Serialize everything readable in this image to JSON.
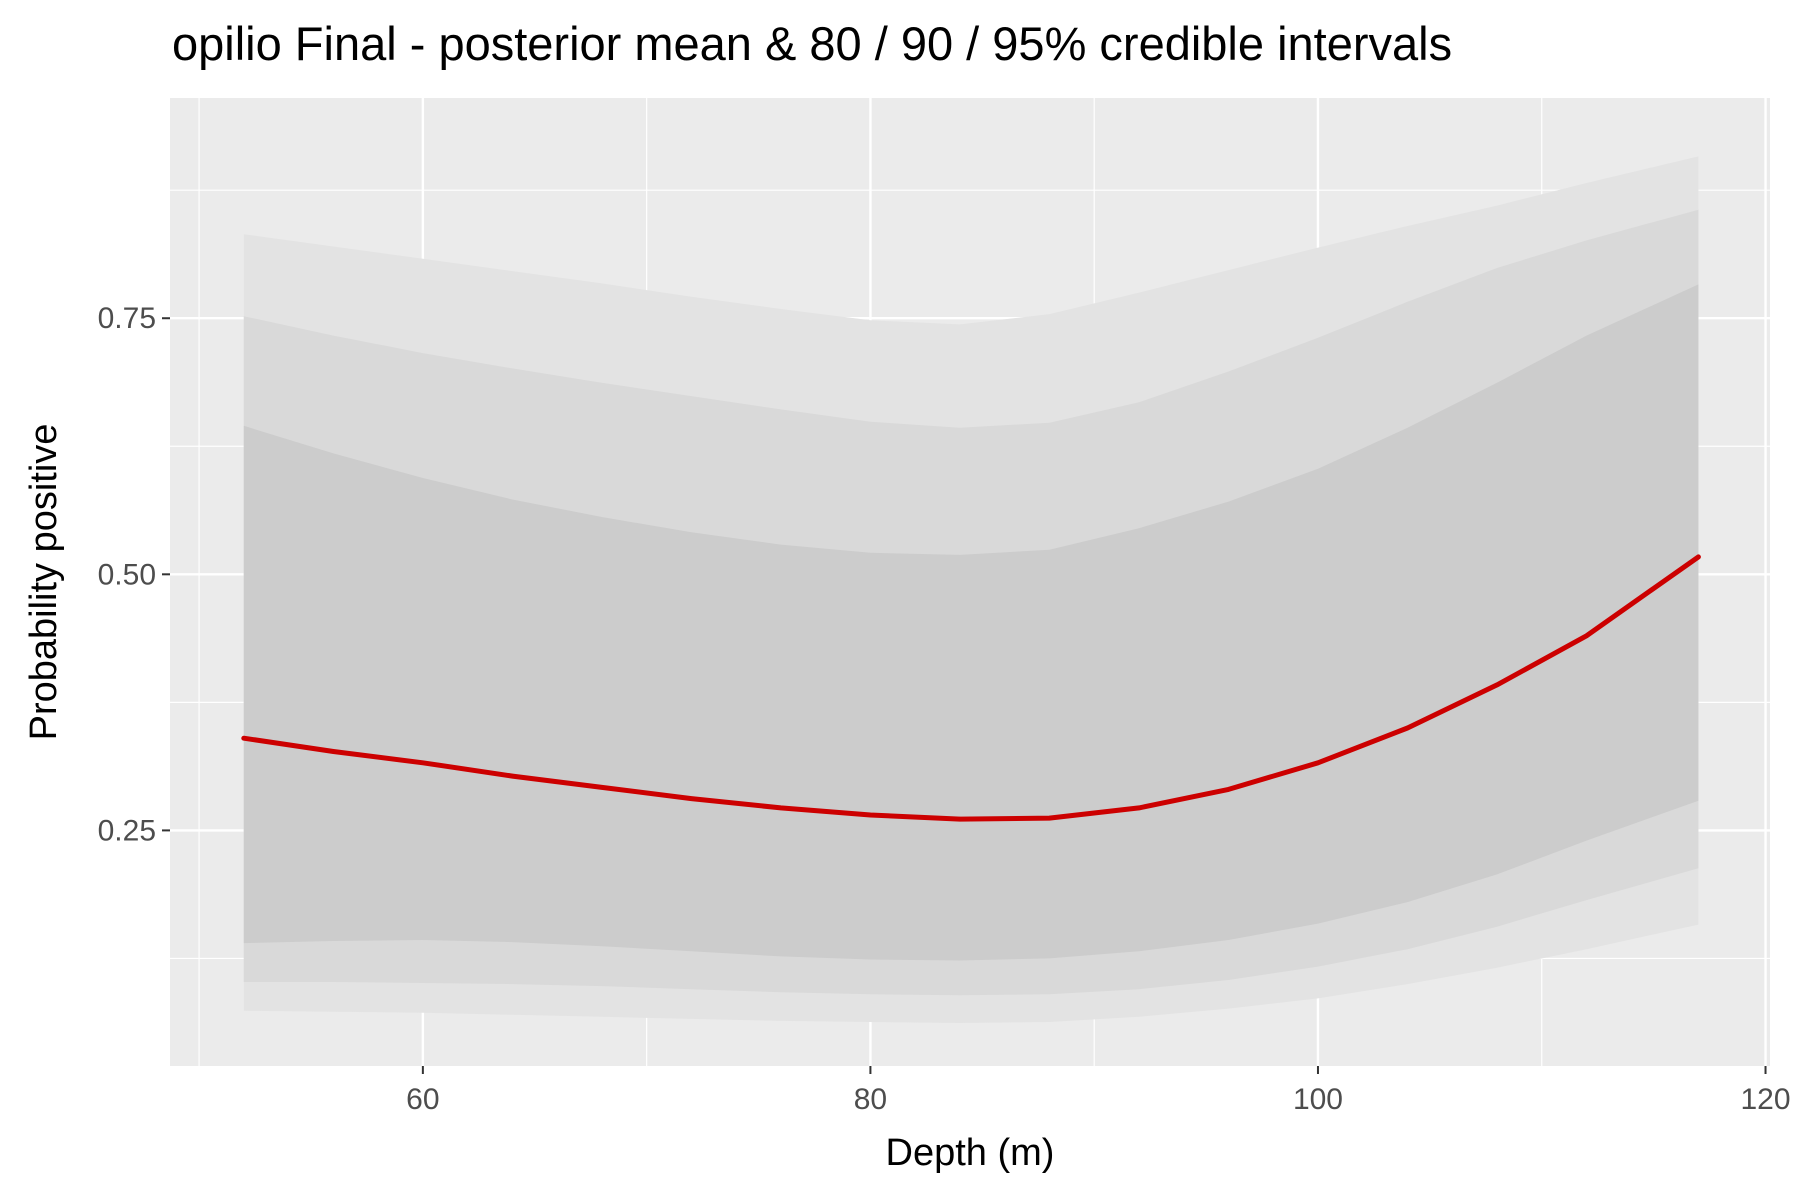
{
  "chart_data": {
    "type": "area",
    "title": "opilio Final - posterior mean & 80 / 90 / 95% credible intervals",
    "xlabel": "Depth (m)",
    "ylabel": "Probability positive",
    "xlim": [
      48.7,
      120.2
    ],
    "ylim": [
      0.02,
      0.965
    ],
    "x_ticks": [
      60,
      80,
      100,
      120
    ],
    "x_tick_labels": [
      "60",
      "80",
      "100",
      "120"
    ],
    "y_ticks": [
      0.25,
      0.5,
      0.75
    ],
    "y_tick_labels": [
      "0.25",
      "0.50",
      "0.75"
    ],
    "grid": true,
    "legend": "none",
    "x": [
      52,
      56,
      60,
      64,
      68,
      72,
      76,
      80,
      84,
      88,
      92,
      96,
      100,
      104,
      108,
      112,
      117
    ],
    "series": [
      {
        "name": "posterior mean",
        "color": "#cc0000",
        "values": [
          0.34,
          0.327,
          0.316,
          0.303,
          0.292,
          0.281,
          0.272,
          0.265,
          0.261,
          0.262,
          0.272,
          0.29,
          0.316,
          0.35,
          0.392,
          0.44,
          0.517
        ]
      }
    ],
    "intervals": [
      {
        "name": "95%",
        "color": "#e3e3e3",
        "lower": [
          0.074,
          0.073,
          0.072,
          0.07,
          0.068,
          0.066,
          0.064,
          0.063,
          0.062,
          0.063,
          0.068,
          0.076,
          0.086,
          0.1,
          0.116,
          0.134,
          0.158
        ],
        "upper": [
          0.832,
          0.82,
          0.808,
          0.796,
          0.784,
          0.771,
          0.759,
          0.748,
          0.744,
          0.754,
          0.775,
          0.797,
          0.819,
          0.84,
          0.86,
          0.882,
          0.908
        ]
      },
      {
        "name": "90%",
        "color": "#d9d9d9",
        "lower": [
          0.102,
          0.102,
          0.101,
          0.1,
          0.098,
          0.095,
          0.092,
          0.09,
          0.089,
          0.09,
          0.095,
          0.104,
          0.117,
          0.134,
          0.156,
          0.182,
          0.213
        ],
        "upper": [
          0.752,
          0.733,
          0.716,
          0.701,
          0.687,
          0.674,
          0.661,
          0.649,
          0.643,
          0.648,
          0.668,
          0.698,
          0.731,
          0.766,
          0.799,
          0.826,
          0.856
        ]
      },
      {
        "name": "80%",
        "color": "#cccccc",
        "lower": [
          0.14,
          0.142,
          0.143,
          0.141,
          0.137,
          0.132,
          0.127,
          0.124,
          0.123,
          0.125,
          0.132,
          0.143,
          0.159,
          0.18,
          0.207,
          0.24,
          0.279
        ],
        "upper": [
          0.645,
          0.618,
          0.594,
          0.573,
          0.556,
          0.541,
          0.529,
          0.521,
          0.519,
          0.524,
          0.545,
          0.571,
          0.603,
          0.643,
          0.687,
          0.733,
          0.783
        ]
      }
    ]
  }
}
